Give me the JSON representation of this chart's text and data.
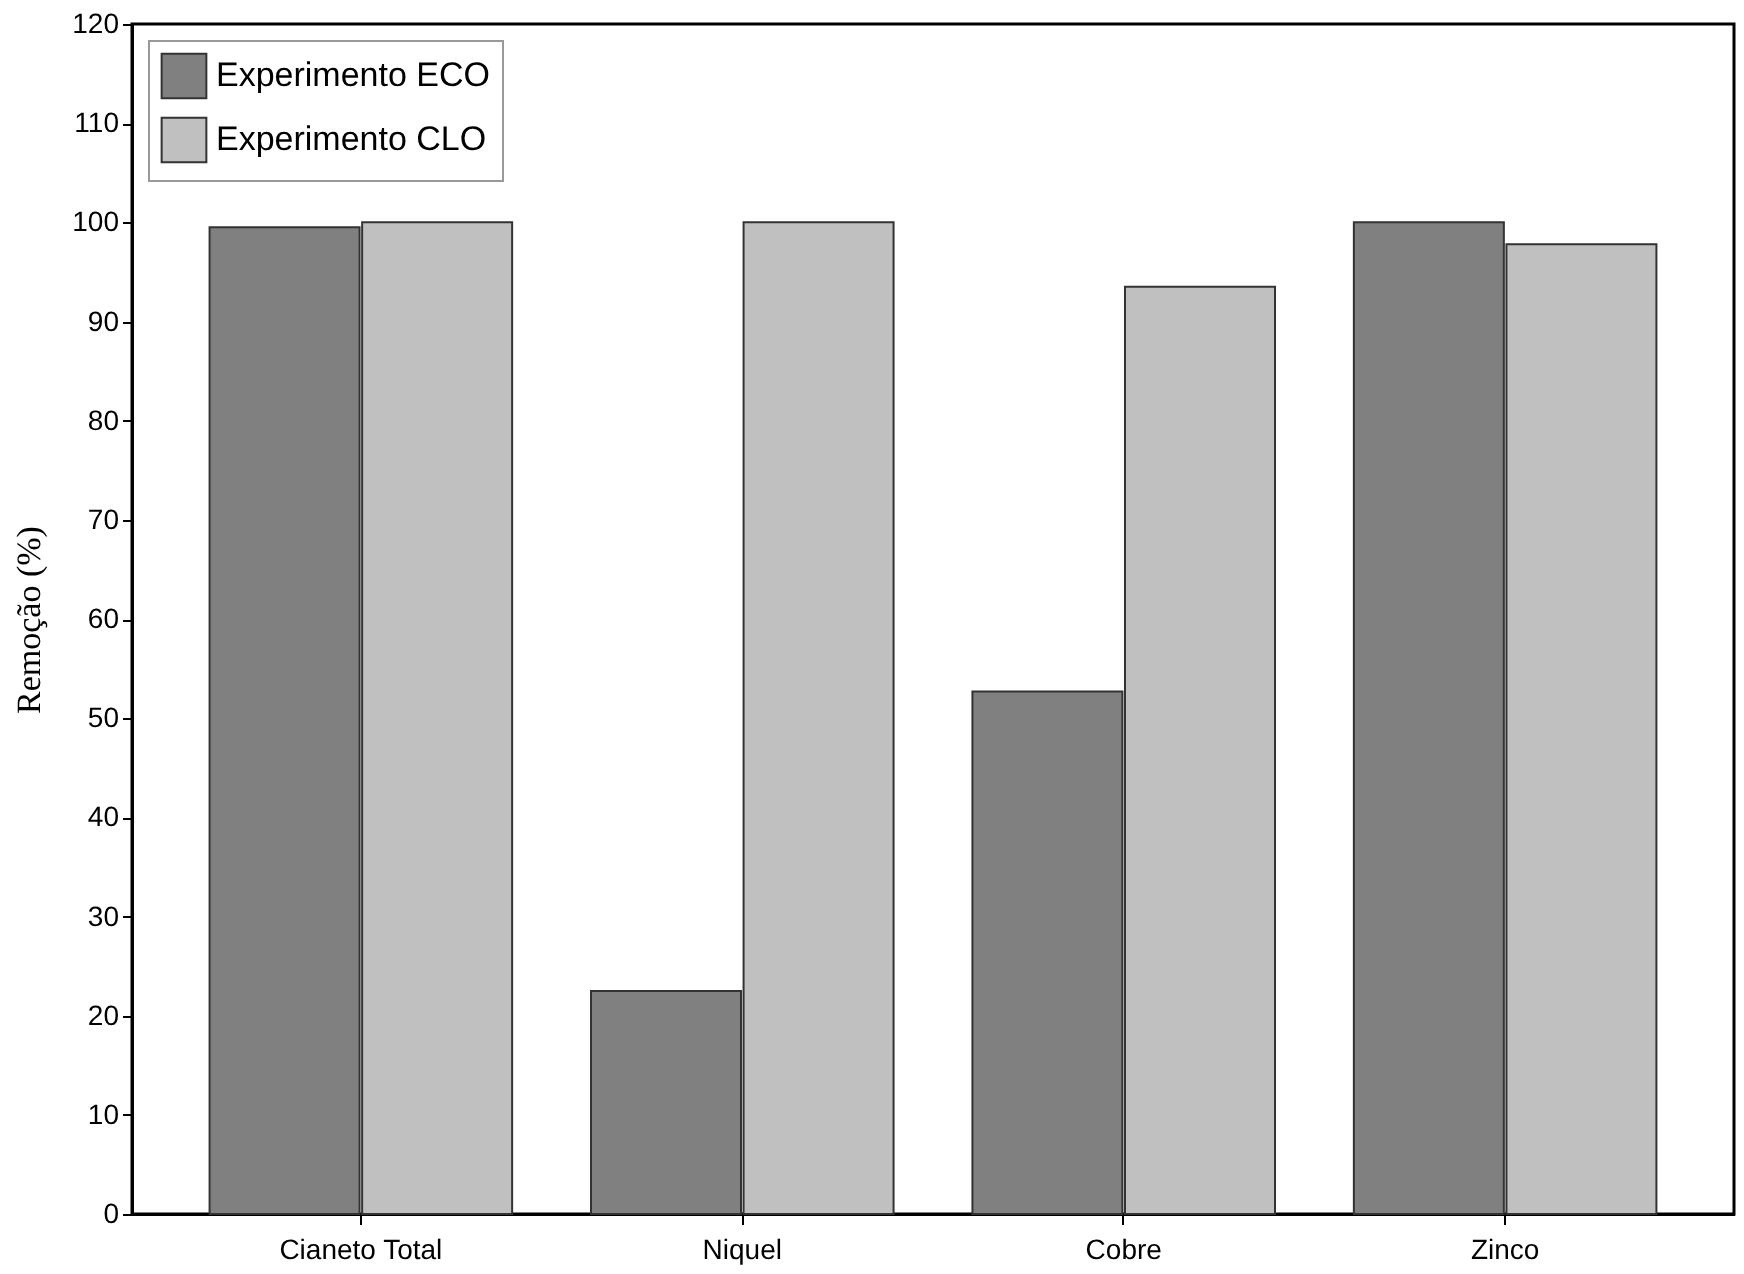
{
  "chart_data": {
    "type": "bar",
    "ylabel": "Remoção (%)",
    "categories": [
      "Cianeto Total",
      "Niquel",
      "Cobre",
      "Zinco"
    ],
    "series": [
      {
        "name": "Experimento ECO",
        "color": "#808080",
        "values": [
          99.5,
          22.5,
          52.7,
          100
        ]
      },
      {
        "name": "Experimento CLO",
        "color": "#c0c0c0",
        "values": [
          100,
          100,
          93.5,
          97.8
        ]
      }
    ],
    "ylim": [
      0,
      120
    ],
    "yticks": [
      0,
      10,
      20,
      30,
      40,
      50,
      60,
      70,
      80,
      90,
      100,
      110,
      120
    ],
    "grid": false,
    "legend": "top left"
  }
}
